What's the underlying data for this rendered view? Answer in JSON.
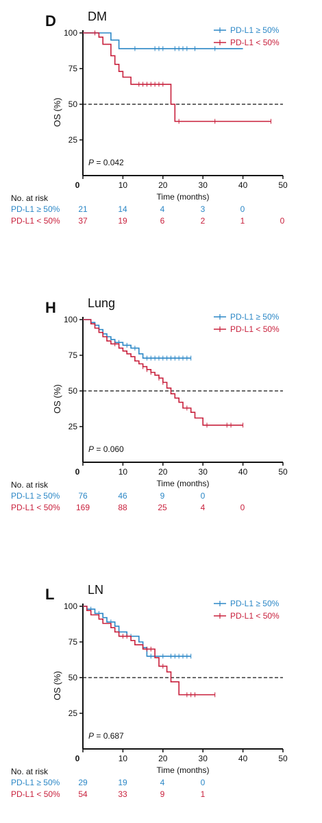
{
  "chart_data": [
    {
      "type": "line",
      "panel_letter": "D",
      "title": "DM",
      "xlabel": "Time (months)",
      "ylabel": "OS (%)",
      "xlim": [
        0,
        50
      ],
      "ylim": [
        0,
        100
      ],
      "x_ticks": [
        "0",
        "10",
        "20",
        "30",
        "40",
        "50"
      ],
      "y_ticks": [
        "25",
        "50",
        "75",
        "100"
      ],
      "reference_line": {
        "y": 50,
        "style": "dashed"
      },
      "p_label": "P",
      "p_value": " = 0.042",
      "legend_position": "top-right",
      "series": [
        {
          "name": "PD-L1 ≥ 50%",
          "color": "#2b87c6",
          "steps": [
            [
              0,
              100
            ],
            [
              7,
              100
            ],
            [
              7,
              95
            ],
            [
              9,
              95
            ],
            [
              9,
              89
            ],
            [
              40,
              89
            ]
          ],
          "censor": [
            13,
            18,
            19,
            20,
            23,
            24,
            25,
            26,
            28,
            33
          ]
        },
        {
          "name": "PD-L1 < 50%",
          "color": "#c8203c",
          "steps": [
            [
              0,
              100
            ],
            [
              4,
              100
            ],
            [
              4,
              97
            ],
            [
              5,
              97
            ],
            [
              5,
              92
            ],
            [
              7,
              92
            ],
            [
              7,
              84
            ],
            [
              8,
              84
            ],
            [
              8,
              78
            ],
            [
              9,
              78
            ],
            [
              9,
              73
            ],
            [
              10,
              73
            ],
            [
              10,
              69
            ],
            [
              12,
              69
            ],
            [
              12,
              64
            ],
            [
              22,
              64
            ],
            [
              22,
              50
            ],
            [
              23,
              50
            ],
            [
              23,
              38
            ],
            [
              47,
              38
            ]
          ],
          "censor": [
            3,
            14,
            15,
            16,
            17,
            18,
            19,
            20,
            24,
            33,
            47
          ]
        }
      ],
      "risk_table": {
        "header": "No. at risk",
        "rows": [
          {
            "label": "PD-L1 ≥ 50%",
            "color": "#2b87c6",
            "values": [
              "21",
              "14",
              "4",
              "3",
              "0"
            ]
          },
          {
            "label": "PD-L1 < 50%",
            "color": "#c8203c",
            "values": [
              "37",
              "19",
              "6",
              "2",
              "1",
              "0"
            ]
          }
        ]
      }
    },
    {
      "type": "line",
      "panel_letter": "H",
      "title": "Lung",
      "xlabel": "Time (months)",
      "ylabel": "OS (%)",
      "xlim": [
        0,
        50
      ],
      "ylim": [
        0,
        100
      ],
      "x_ticks": [
        "0",
        "10",
        "20",
        "30",
        "40",
        "50"
      ],
      "y_ticks": [
        "25",
        "50",
        "75",
        "100"
      ],
      "reference_line": {
        "y": 50,
        "style": "dashed"
      },
      "p_label": "P",
      "p_value": " = 0.060",
      "legend_position": "top-right",
      "series": [
        {
          "name": "PD-L1 ≥ 50%",
          "color": "#2b87c6",
          "steps": [
            [
              0,
              100
            ],
            [
              2,
              100
            ],
            [
              2,
              98
            ],
            [
              3,
              98
            ],
            [
              3,
              96
            ],
            [
              4,
              96
            ],
            [
              4,
              93
            ],
            [
              5,
              93
            ],
            [
              5,
              90
            ],
            [
              6,
              90
            ],
            [
              6,
              88
            ],
            [
              7,
              88
            ],
            [
              7,
              86
            ],
            [
              8,
              86
            ],
            [
              8,
              84
            ],
            [
              10,
              84
            ],
            [
              10,
              82
            ],
            [
              12,
              82
            ],
            [
              12,
              80
            ],
            [
              14,
              80
            ],
            [
              14,
              76
            ],
            [
              15,
              76
            ],
            [
              15,
              73
            ],
            [
              27,
              73
            ]
          ],
          "censor": [
            9,
            11,
            13,
            16,
            17,
            18,
            19,
            20,
            21,
            22,
            23,
            24,
            25,
            26,
            27
          ]
        },
        {
          "name": "PD-L1 < 50%",
          "color": "#c8203c",
          "steps": [
            [
              0,
              100
            ],
            [
              2,
              100
            ],
            [
              2,
              97
            ],
            [
              3,
              97
            ],
            [
              3,
              94
            ],
            [
              4,
              94
            ],
            [
              4,
              91
            ],
            [
              5,
              91
            ],
            [
              5,
              88
            ],
            [
              6,
              88
            ],
            [
              6,
              85
            ],
            [
              7,
              85
            ],
            [
              7,
              83
            ],
            [
              9,
              83
            ],
            [
              9,
              80
            ],
            [
              10,
              80
            ],
            [
              10,
              78
            ],
            [
              11,
              78
            ],
            [
              11,
              76
            ],
            [
              12,
              76
            ],
            [
              12,
              74
            ],
            [
              13,
              74
            ],
            [
              13,
              71
            ],
            [
              14,
              71
            ],
            [
              14,
              69
            ],
            [
              15,
              69
            ],
            [
              15,
              67
            ],
            [
              16,
              67
            ],
            [
              16,
              65
            ],
            [
              17,
              65
            ],
            [
              17,
              63
            ],
            [
              18,
              63
            ],
            [
              18,
              61
            ],
            [
              19,
              61
            ],
            [
              19,
              59
            ],
            [
              20,
              59
            ],
            [
              20,
              56
            ],
            [
              21,
              56
            ],
            [
              21,
              52
            ],
            [
              22,
              52
            ],
            [
              22,
              48
            ],
            [
              23,
              48
            ],
            [
              23,
              45
            ],
            [
              24,
              45
            ],
            [
              24,
              42
            ],
            [
              25,
              42
            ],
            [
              25,
              38
            ],
            [
              27,
              38
            ],
            [
              27,
              35
            ],
            [
              28,
              35
            ],
            [
              28,
              31
            ],
            [
              30,
              31
            ],
            [
              30,
              26
            ],
            [
              40,
              26
            ]
          ],
          "censor": [
            8,
            15,
            16,
            17,
            19,
            20,
            26,
            31,
            36,
            37,
            40
          ]
        }
      ],
      "risk_table": {
        "header": "No. at risk",
        "rows": [
          {
            "label": "PD-L1 ≥ 50%",
            "color": "#2b87c6",
            "values": [
              "76",
              "46",
              "9",
              "0"
            ]
          },
          {
            "label": "PD-L1 < 50%",
            "color": "#c8203c",
            "values": [
              "169",
              "88",
              "25",
              "4",
              "0"
            ]
          }
        ]
      }
    },
    {
      "type": "line",
      "panel_letter": "L",
      "title": "LN",
      "xlabel": "Time (months)",
      "ylabel": "OS (%)",
      "xlim": [
        0,
        50
      ],
      "ylim": [
        0,
        100
      ],
      "x_ticks": [
        "0",
        "10",
        "20",
        "30",
        "40",
        "50"
      ],
      "y_ticks": [
        "25",
        "50",
        "75",
        "100"
      ],
      "reference_line": {
        "y": 50,
        "style": "dashed"
      },
      "p_label": "P",
      "p_value": " = 0.687",
      "legend_position": "top-right",
      "series": [
        {
          "name": "PD-L1 ≥ 50%",
          "color": "#2b87c6",
          "steps": [
            [
              0,
              100
            ],
            [
              1,
              100
            ],
            [
              1,
              98
            ],
            [
              3,
              98
            ],
            [
              3,
              95
            ],
            [
              5,
              95
            ],
            [
              5,
              92
            ],
            [
              6,
              92
            ],
            [
              6,
              89
            ],
            [
              8,
              89
            ],
            [
              8,
              86
            ],
            [
              9,
              86
            ],
            [
              9,
              82
            ],
            [
              11,
              82
            ],
            [
              11,
              79
            ],
            [
              14,
              79
            ],
            [
              14,
              75
            ],
            [
              15,
              75
            ],
            [
              15,
              71
            ],
            [
              16,
              71
            ],
            [
              16,
              65
            ],
            [
              27,
              65
            ]
          ],
          "censor": [
            2,
            4,
            7,
            12,
            17,
            20,
            22,
            23,
            24,
            25,
            26,
            27
          ]
        },
        {
          "name": "PD-L1 < 50%",
          "color": "#c8203c",
          "steps": [
            [
              0,
              100
            ],
            [
              1,
              100
            ],
            [
              1,
              97
            ],
            [
              2,
              97
            ],
            [
              2,
              94
            ],
            [
              4,
              94
            ],
            [
              4,
              91
            ],
            [
              5,
              91
            ],
            [
              5,
              88
            ],
            [
              7,
              88
            ],
            [
              7,
              85
            ],
            [
              8,
              85
            ],
            [
              8,
              82
            ],
            [
              9,
              82
            ],
            [
              9,
              79
            ],
            [
              12,
              79
            ],
            [
              12,
              76
            ],
            [
              13,
              76
            ],
            [
              13,
              73
            ],
            [
              15,
              73
            ],
            [
              15,
              70
            ],
            [
              18,
              70
            ],
            [
              18,
              64
            ],
            [
              19,
              64
            ],
            [
              19,
              58
            ],
            [
              21,
              58
            ],
            [
              21,
              54
            ],
            [
              22,
              54
            ],
            [
              22,
              47
            ],
            [
              24,
              47
            ],
            [
              24,
              38
            ],
            [
              33,
              38
            ]
          ],
          "censor": [
            10,
            11,
            16,
            17,
            20,
            26,
            27,
            28,
            33
          ]
        }
      ],
      "risk_table": {
        "header": "No. at risk",
        "rows": [
          {
            "label": "PD-L1 ≥ 50%",
            "color": "#2b87c6",
            "values": [
              "29",
              "19",
              "4",
              "0"
            ]
          },
          {
            "label": "PD-L1 < 50%",
            "color": "#c8203c",
            "values": [
              "54",
              "33",
              "9",
              "1"
            ]
          }
        ]
      }
    }
  ]
}
